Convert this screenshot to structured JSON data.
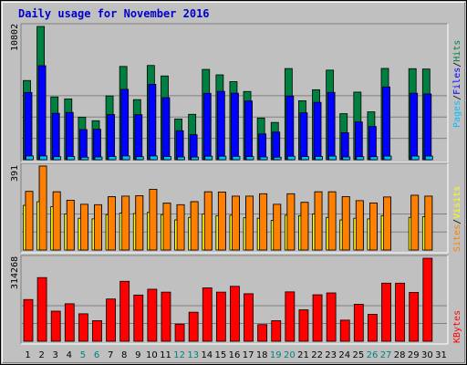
{
  "title": "Daily usage for November 2016",
  "colors": {
    "hits": "#008040",
    "files": "#0000ff",
    "pages": "#00c0ff",
    "visits": "#ffff00",
    "sites": "#ff8000",
    "kbytes": "#ff0000",
    "weekend_label": "#008080",
    "weekday_label": "#000000"
  },
  "legend": {
    "pages": "Pages",
    "files": "Files",
    "hits": "Hits",
    "sep": "/",
    "visits": "Visits",
    "sites": "Sites",
    "kbytes": "KBytes"
  },
  "chart_data": [
    {
      "type": "bar",
      "panel": "hits-files-pages",
      "ymax_label": "10802",
      "ylim": [
        0,
        10802
      ],
      "categories": [
        "1",
        "2",
        "3",
        "4",
        "5",
        "6",
        "7",
        "8",
        "9",
        "10",
        "11",
        "12",
        "13",
        "14",
        "15",
        "16",
        "17",
        "18",
        "19",
        "20",
        "21",
        "22",
        "23",
        "24",
        "25",
        "26",
        "27",
        "28",
        "29",
        "30",
        "31"
      ],
      "weekend_days": [
        "5",
        "6",
        "12",
        "13",
        "19",
        "20",
        "26",
        "27"
      ],
      "series": [
        {
          "name": "Hits",
          "values": [
            6420,
            10802,
            5090,
            4930,
            3450,
            3160,
            5170,
            7560,
            4870,
            7640,
            6790,
            3300,
            3680,
            7320,
            6880,
            6330,
            5530,
            3380,
            3020,
            7390,
            4780,
            5670,
            7260,
            3730,
            5480,
            3880,
            7400,
            0,
            7380,
            7350,
            0
          ]
        },
        {
          "name": "Files",
          "values": [
            5450,
            7620,
            3760,
            3830,
            2440,
            2470,
            3660,
            5700,
            3650,
            6110,
            5030,
            2350,
            2030,
            5380,
            5540,
            5390,
            4760,
            2090,
            2240,
            5170,
            3800,
            4650,
            5460,
            2190,
            3060,
            2690,
            5900,
            0,
            5390,
            5330,
            0
          ]
        },
        {
          "name": "Pages",
          "values": [
            300,
            300,
            240,
            260,
            200,
            220,
            260,
            300,
            240,
            300,
            260,
            220,
            210,
            280,
            280,
            270,
            250,
            220,
            200,
            280,
            250,
            260,
            290,
            220,
            240,
            240,
            290,
            0,
            290,
            290,
            0
          ]
        }
      ]
    },
    {
      "type": "bar",
      "panel": "visits-sites",
      "ymax_label": "391",
      "ylim": [
        0,
        391
      ],
      "series": [
        {
          "name": "Visits",
          "values": [
            208,
            225,
            202,
            168,
            148,
            145,
            165,
            172,
            170,
            175,
            165,
            140,
            152,
            168,
            160,
            162,
            150,
            148,
            138,
            162,
            160,
            168,
            152,
            140,
            148,
            145,
            160,
            0,
            152,
            155,
            0
          ]
        },
        {
          "name": "Sites",
          "values": [
            273,
            391,
            271,
            232,
            213,
            211,
            248,
            251,
            253,
            283,
            218,
            211,
            225,
            271,
            270,
            251,
            251,
            262,
            213,
            262,
            222,
            271,
            271,
            249,
            230,
            219,
            247,
            0,
            255,
            251,
            0
          ]
        }
      ]
    },
    {
      "type": "bar",
      "panel": "kbytes",
      "ymax_label": "314268",
      "ylim": [
        0,
        314268
      ],
      "series": [
        {
          "name": "KBytes",
          "values": [
            158000,
            241000,
            114000,
            142000,
            104000,
            78000,
            160000,
            227000,
            175000,
            197000,
            186000,
            65000,
            110000,
            202000,
            186000,
            208000,
            180000,
            63000,
            78000,
            187000,
            119000,
            176000,
            183000,
            80000,
            140000,
            102000,
            220000,
            220000,
            185000,
            314268,
            0
          ]
        }
      ]
    }
  ]
}
